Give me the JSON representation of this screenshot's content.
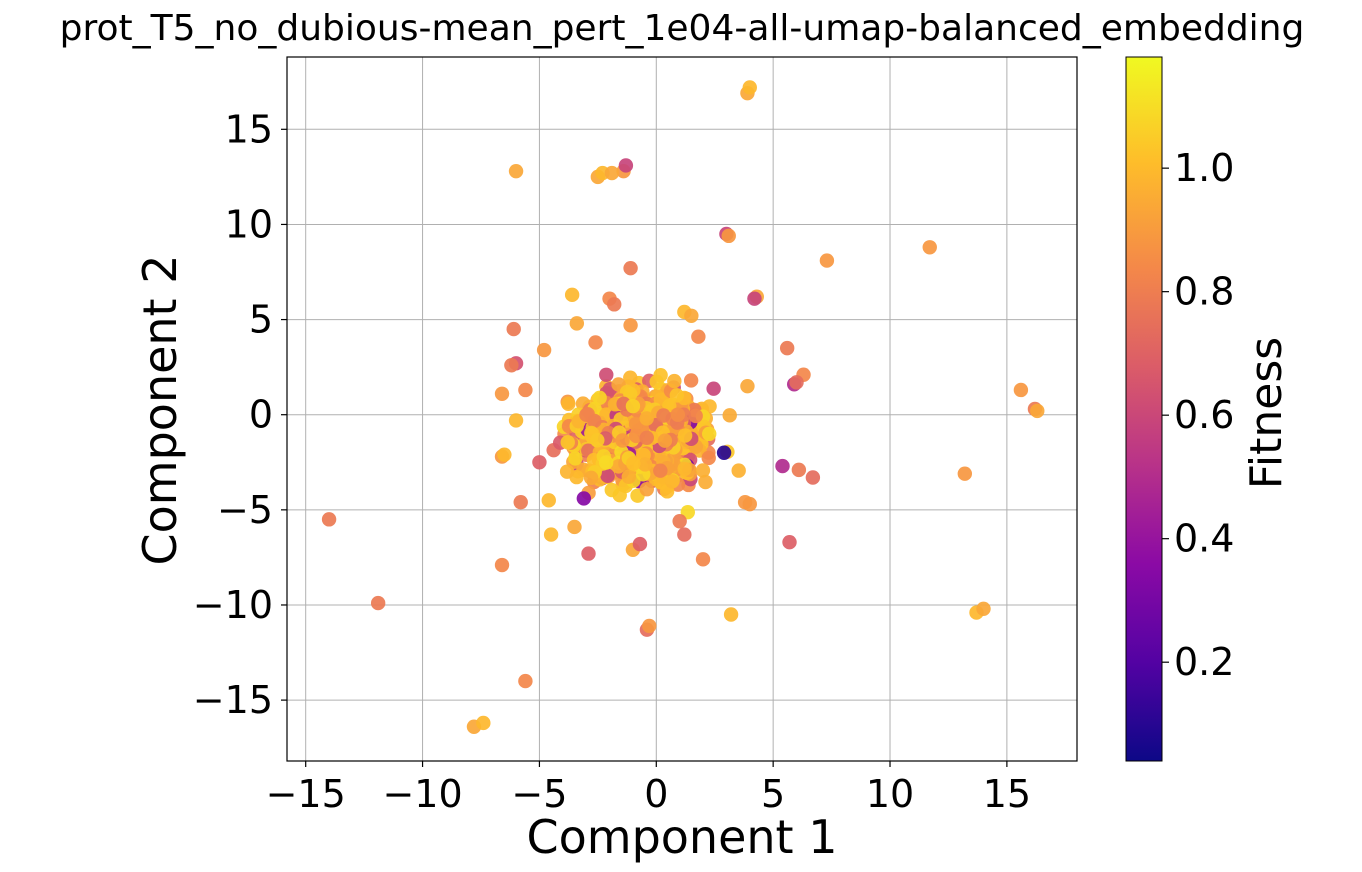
{
  "chart_data": {
    "type": "scatter",
    "title": "prot_T5_no_dubious-mean_pert_1e04-all-umap-balanced_embedding",
    "xlabel": "Component 1",
    "ylabel": "Component 2",
    "xlim": [
      -15.8,
      18
    ],
    "ylim": [
      -18.2,
      18.8
    ],
    "xticks": [
      -15,
      -10,
      -5,
      0,
      5,
      10,
      15
    ],
    "xtick_labels": [
      "−15",
      "−10",
      "−5",
      "0",
      "5",
      "10",
      "15"
    ],
    "yticks": [
      -15,
      -10,
      -5,
      0,
      5,
      10,
      15
    ],
    "ytick_labels": [
      "−15",
      "−10",
      "−5",
      "0",
      "5",
      "10",
      "15"
    ],
    "grid": true,
    "colorbar": {
      "label": "Fitness",
      "colormap": "plasma",
      "range": [
        0.04,
        1.18
      ],
      "ticks": [
        0.2,
        0.4,
        0.6,
        0.8,
        1.0
      ],
      "tick_labels": [
        "0.2",
        "0.4",
        "0.6",
        "0.8",
        "1.0"
      ]
    },
    "colormap_stops": [
      "#0d0887",
      "#5302a3",
      "#8b0aa5",
      "#b83289",
      "#db5c68",
      "#f48849",
      "#febd2a",
      "#f0f921"
    ],
    "points": [
      [
        3.9,
        16.9,
        0.95
      ],
      [
        4.0,
        17.2,
        1.0
      ],
      [
        -6.0,
        12.8,
        0.95
      ],
      [
        -2.5,
        12.5,
        0.95
      ],
      [
        -2.3,
        12.7,
        1.0
      ],
      [
        -1.4,
        12.8,
        0.9
      ],
      [
        -1.3,
        13.1,
        0.6
      ],
      [
        -1.9,
        12.7,
        0.95
      ],
      [
        3.0,
        9.5,
        0.6
      ],
      [
        3.1,
        9.4,
        0.9
      ],
      [
        11.7,
        8.8,
        0.9
      ],
      [
        7.3,
        8.1,
        0.9
      ],
      [
        -1.1,
        7.7,
        0.8
      ],
      [
        4.3,
        6.2,
        0.95
      ],
      [
        -3.6,
        6.3,
        1.0
      ],
      [
        -2.0,
        6.1,
        0.85
      ],
      [
        -1.8,
        5.8,
        0.8
      ],
      [
        1.2,
        5.4,
        1.0
      ],
      [
        1.5,
        5.2,
        0.95
      ],
      [
        4.2,
        6.1,
        0.6
      ],
      [
        -6.1,
        4.5,
        0.8
      ],
      [
        -3.4,
        4.8,
        0.95
      ],
      [
        -2.6,
        3.8,
        0.85
      ],
      [
        -1.1,
        4.7,
        0.9
      ],
      [
        1.8,
        4.1,
        0.85
      ],
      [
        -4.8,
        3.4,
        0.9
      ],
      [
        -6.0,
        2.7,
        0.65
      ],
      [
        -6.2,
        2.6,
        0.8
      ],
      [
        -5.6,
        1.3,
        0.85
      ],
      [
        -6.6,
        1.1,
        0.9
      ],
      [
        5.6,
        3.5,
        0.8
      ],
      [
        6.3,
        2.1,
        0.85
      ],
      [
        3.9,
        1.5,
        0.95
      ],
      [
        5.9,
        1.6,
        0.5
      ],
      [
        6.0,
        1.7,
        0.75
      ],
      [
        15.6,
        1.3,
        0.9
      ],
      [
        16.2,
        0.3,
        0.8
      ],
      [
        16.3,
        0.2,
        0.95
      ],
      [
        -6.0,
        -0.3,
        1.0
      ],
      [
        -6.6,
        -2.2,
        0.9
      ],
      [
        -6.5,
        -2.1,
        1.0
      ],
      [
        -5.0,
        -2.5,
        0.7
      ],
      [
        5.4,
        -2.7,
        0.5
      ],
      [
        6.1,
        -2.9,
        0.8
      ],
      [
        6.7,
        -3.3,
        0.75
      ],
      [
        13.2,
        -3.1,
        0.9
      ],
      [
        -5.8,
        -4.6,
        0.8
      ],
      [
        -4.6,
        -4.5,
        1.0
      ],
      [
        -4.5,
        -6.3,
        1.0
      ],
      [
        -3.5,
        -5.9,
        0.95
      ],
      [
        -2.9,
        -7.3,
        0.7
      ],
      [
        -3.1,
        -4.4,
        0.35
      ],
      [
        -1.0,
        -7.1,
        0.95
      ],
      [
        -0.7,
        -6.8,
        0.7
      ],
      [
        1.0,
        -5.6,
        0.8
      ],
      [
        1.2,
        -6.3,
        0.75
      ],
      [
        2.0,
        -7.6,
        0.85
      ],
      [
        3.8,
        -4.6,
        0.9
      ],
      [
        4.0,
        -4.7,
        0.9
      ],
      [
        5.7,
        -6.7,
        0.7
      ],
      [
        2.9,
        -2.0,
        0.1
      ],
      [
        -14.0,
        -5.5,
        0.8
      ],
      [
        -11.9,
        -9.9,
        0.8
      ],
      [
        -6.6,
        -7.9,
        0.85
      ],
      [
        -5.6,
        -14.0,
        0.85
      ],
      [
        -7.8,
        -16.4,
        0.95
      ],
      [
        -7.4,
        -16.2,
        1.0
      ],
      [
        -0.4,
        -11.3,
        0.75
      ],
      [
        -0.3,
        -11.1,
        0.9
      ],
      [
        3.2,
        -10.5,
        1.0
      ],
      [
        13.7,
        -10.4,
        1.0
      ],
      [
        14.0,
        -10.2,
        0.95
      ]
    ]
  }
}
